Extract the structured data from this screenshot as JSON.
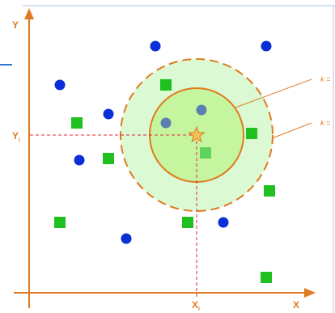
{
  "axes": {
    "x_label": "X",
    "y_label": "Y",
    "query_x_label": "X",
    "query_x_sub": "i",
    "query_y_label": "Y",
    "query_y_sub": "i"
  },
  "k_labels": [
    "k =",
    "k ="
  ],
  "colors": {
    "axis": "#e07a1f",
    "class_circle": "#0a2fd6",
    "class_square": "#1fc01f",
    "inner_fill": "#c6f5a0",
    "outer_fill": "#dbf9d2",
    "ring": "#e07a1f",
    "guide": "#e0283a",
    "query_star": "#f5c25a",
    "frame": "#c7d9ea"
  },
  "icons": {
    "query_point": "star-icon",
    "class_a": "circle-icon",
    "class_b": "square-icon"
  }
}
